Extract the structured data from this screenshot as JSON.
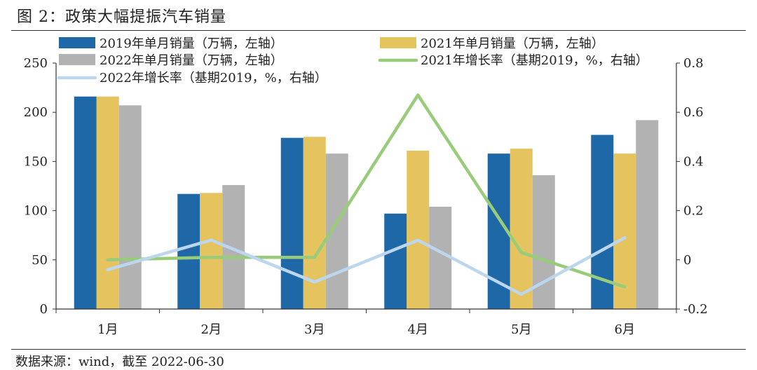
{
  "figure": {
    "title": "图 2：政策大幅提振汽车销量",
    "source": "数据来源：wind，截至 2022-06-30"
  },
  "colors": {
    "bar2019": "#1f68a7",
    "bar2021": "#e5c35e",
    "bar2022": "#b2b2b2",
    "line2021": "#99cc7a",
    "line2022": "#bcd6ee",
    "axis": "#333333"
  },
  "chart_data": {
    "type": "bar+line",
    "categories": [
      "1月",
      "2月",
      "3月",
      "4月",
      "5月",
      "6月"
    ],
    "ylim_left": [
      0,
      250
    ],
    "yticks_left": [
      "0",
      "50",
      "100",
      "150",
      "200",
      "250"
    ],
    "ylim_right": [
      -0.2,
      0.8
    ],
    "yticks_right": [
      "-0.2",
      "0",
      "0.2",
      "0.4",
      "0.6",
      "0.8"
    ],
    "bar_series": [
      {
        "name": "2019年单月销量（万辆，左轴）",
        "values": [
          216,
          117,
          174,
          97,
          158,
          177
        ]
      },
      {
        "name": "2021年单月销量（万辆，左轴）",
        "values": [
          216,
          118,
          175,
          161,
          163,
          158
        ]
      },
      {
        "name": "2022年单月销量（万辆，左轴）",
        "values": [
          207,
          126,
          158,
          104,
          136,
          192
        ]
      }
    ],
    "line_series": [
      {
        "name": "2021年增长率（基期2019，%，右轴）",
        "values": [
          0.0,
          0.01,
          0.01,
          0.67,
          0.03,
          -0.11
        ]
      },
      {
        "name": "2022年增长率（基期2019，%，右轴）",
        "values": [
          -0.04,
          0.08,
          -0.09,
          0.08,
          -0.14,
          0.09
        ]
      }
    ],
    "legend_position": "top"
  }
}
